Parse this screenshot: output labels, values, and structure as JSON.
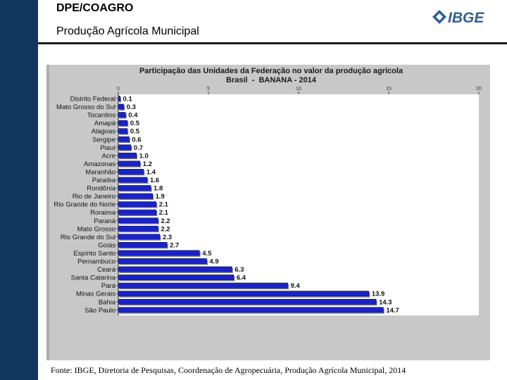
{
  "header": {
    "title": "DPE/COAGRO",
    "subtitle": "Produção Agrícola Municipal",
    "logo_text": "IBGE"
  },
  "colors": {
    "sidebar": "#10355f",
    "bar": "#1a23c8",
    "logo": "#2f5f95"
  },
  "chart_data": {
    "type": "bar",
    "orientation": "horizontal",
    "title": "Participação das Unidades da Federação no valor da produção agrícola",
    "subtitle": "Brasil  -  BANANA - 2014",
    "categories": [
      "Distrito Federal",
      "Mato Grosso do Sul",
      "Tocantins",
      "Amapá",
      "Alagoas",
      "Sergipe",
      "Piauí",
      "Acre",
      "Amazonas",
      "Maranhão",
      "Paraíba",
      "Rondônia",
      "Rio de Janeiro",
      "Rio Grande do Norte",
      "Roraima",
      "Paraná",
      "Mato Grosso",
      "Rio Grande do Sul",
      "Goiás",
      "Espírito Santo",
      "Pernambuco",
      "Ceará",
      "Santa Catarina",
      "Pará",
      "Minas Gerais",
      "Bahia",
      "São Paulo"
    ],
    "values": [
      0.1,
      0.3,
      0.4,
      0.5,
      0.5,
      0.6,
      0.7,
      1.0,
      1.2,
      1.4,
      1.6,
      1.8,
      1.9,
      2.1,
      2.1,
      2.2,
      2.2,
      2.3,
      2.7,
      4.5,
      4.9,
      6.3,
      6.4,
      9.4,
      13.9,
      14.3,
      14.7
    ],
    "value_labels": [
      "0.1",
      "0.3",
      "0.4",
      "0.5",
      "0.5",
      "0.6",
      "0.7",
      "1.0",
      "1.2",
      "1.4",
      "1.6",
      "1.8",
      "1.9",
      "2.1",
      "2.1",
      "2.2",
      "2.2",
      "2.3",
      "2.7",
      "4.5",
      "4.9",
      "6.3",
      "6.4",
      "9.4",
      "13.9",
      "14.3",
      "14.7"
    ],
    "xlim": [
      0,
      20
    ],
    "xticks": [
      0,
      5,
      10,
      15,
      20
    ],
    "xtick_labels": [
      "0",
      "5",
      "10",
      "15",
      "20"
    ],
    "grid": false,
    "legend": "none"
  },
  "source": "Fonte: IBGE, Diretoria de Pesquisas, Coordenação de Agropecuária, Produção Agrícola Municipal, 2014"
}
